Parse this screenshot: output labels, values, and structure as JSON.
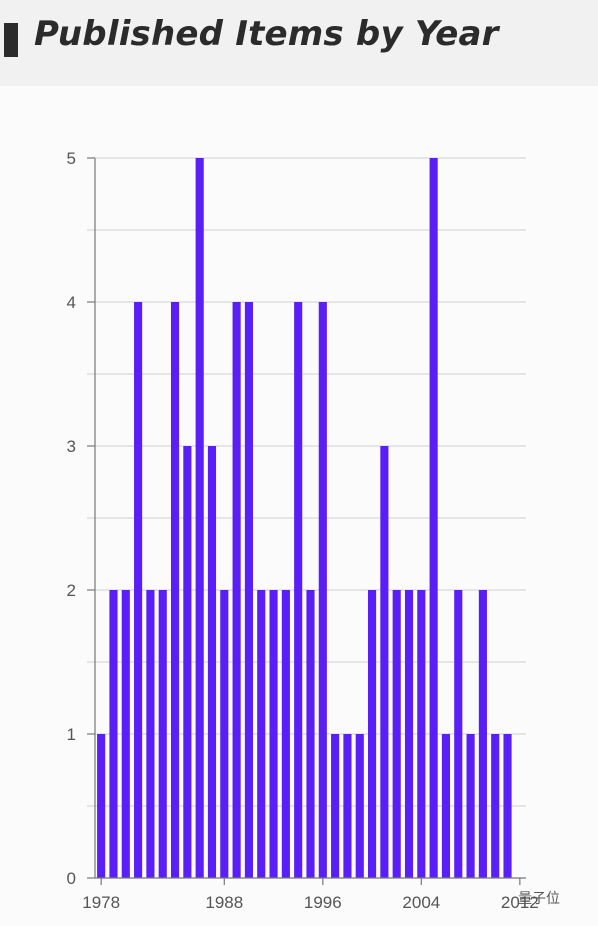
{
  "header": {
    "title": "Published Items by Year"
  },
  "watermark": "量子位",
  "chart_data": {
    "type": "bar",
    "title": "Published Items by Year",
    "xlabel": "",
    "ylabel": "",
    "color": "#5a1ef7",
    "x_tick_labels": [
      "1978",
      "1988",
      "1996",
      "2004",
      "2012"
    ],
    "y_ticks": [
      0,
      1,
      2,
      3,
      4,
      5
    ],
    "ylim": [
      0,
      5
    ],
    "grid": true,
    "categories": [
      1978,
      1979,
      1980,
      1981,
      1982,
      1983,
      1984,
      1985,
      1986,
      1987,
      1988,
      1989,
      1990,
      1991,
      1992,
      1993,
      1994,
      1995,
      1996,
      1997,
      1998,
      1999,
      2000,
      2001,
      2002,
      2003,
      2004,
      2005,
      2006,
      2007,
      2008,
      2009,
      2010,
      2011,
      2012
    ],
    "values": [
      1,
      2,
      2,
      4,
      2,
      2,
      4,
      3,
      5,
      3,
      2,
      4,
      4,
      2,
      2,
      2,
      4,
      2,
      4,
      1,
      1,
      1,
      2,
      3,
      2,
      2,
      2,
      5,
      1,
      2,
      1,
      2,
      1,
      1,
      0
    ]
  }
}
